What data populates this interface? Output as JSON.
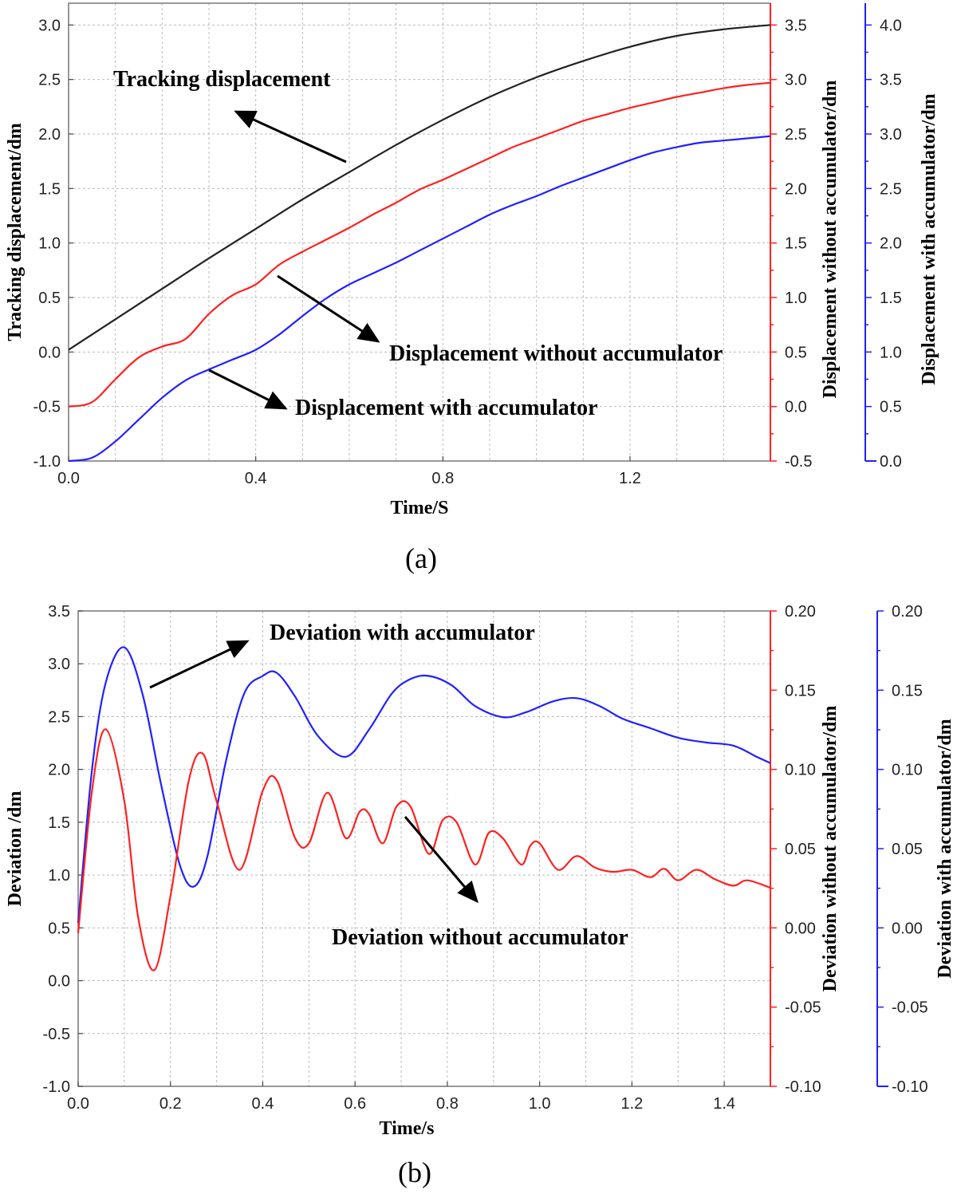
{
  "colors": {
    "black": "#222222",
    "red": "#ff2020",
    "blue": "#2020ff",
    "grid": "#bbbbbb",
    "frame": "#777777"
  },
  "chart_data": [
    {
      "type": "line",
      "panel_label": "(a)",
      "xlabel": "Time/S",
      "xlim": [
        0,
        1.5
      ],
      "xticks": [
        "0.0",
        "0.4",
        "0.8",
        "1.2"
      ],
      "grid": true,
      "axes": {
        "left": {
          "label": "Tracking displacement/dm",
          "ylim": [
            -1.0,
            3.2
          ],
          "ticks": [
            "-1.0",
            "-0.5",
            "0.0",
            "0.5",
            "1.0",
            "1.5",
            "2.0",
            "2.5",
            "3.0"
          ]
        },
        "right1": {
          "label": "Displacement without accumulator/dm",
          "ylim": [
            -0.5,
            3.7
          ],
          "ticks": [
            "-0.5",
            "0.0",
            "0.5",
            "1.0",
            "1.5",
            "2.0",
            "2.5",
            "3.0",
            "3.5"
          ]
        },
        "right2": {
          "label": "Displacement with accumulator/dm",
          "ylim": [
            0.0,
            4.2
          ],
          "ticks": [
            "0.0",
            "0.5",
            "1.0",
            "1.5",
            "2.0",
            "2.5",
            "3.0",
            "3.5",
            "4.0"
          ]
        }
      },
      "series": [
        {
          "name": "Tracking displacement",
          "axis": "left",
          "color": "black",
          "x": [
            0,
            0.1,
            0.2,
            0.3,
            0.4,
            0.5,
            0.6,
            0.7,
            0.8,
            0.9,
            1.0,
            1.1,
            1.2,
            1.3,
            1.4,
            1.5
          ],
          "y": [
            0.02,
            0.3,
            0.58,
            0.86,
            1.13,
            1.4,
            1.65,
            1.9,
            2.13,
            2.34,
            2.52,
            2.67,
            2.8,
            2.9,
            2.96,
            3.0
          ]
        },
        {
          "name": "Displacement without accumulator",
          "axis": "right1",
          "color": "red",
          "x": [
            0,
            0.05,
            0.1,
            0.15,
            0.2,
            0.25,
            0.3,
            0.35,
            0.4,
            0.45,
            0.5,
            0.55,
            0.6,
            0.65,
            0.7,
            0.75,
            0.8,
            0.85,
            0.9,
            0.95,
            1.0,
            1.05,
            1.1,
            1.15,
            1.2,
            1.25,
            1.3,
            1.35,
            1.4,
            1.45,
            1.5
          ],
          "y": [
            0.0,
            0.04,
            0.25,
            0.45,
            0.55,
            0.62,
            0.85,
            1.02,
            1.12,
            1.3,
            1.42,
            1.53,
            1.64,
            1.76,
            1.87,
            1.99,
            2.08,
            2.18,
            2.28,
            2.38,
            2.46,
            2.54,
            2.62,
            2.68,
            2.74,
            2.79,
            2.84,
            2.88,
            2.92,
            2.95,
            2.97
          ]
        },
        {
          "name": "Displacement with accumulator",
          "axis": "right2",
          "color": "blue",
          "x": [
            0,
            0.05,
            0.1,
            0.15,
            0.2,
            0.25,
            0.3,
            0.35,
            0.4,
            0.45,
            0.5,
            0.55,
            0.6,
            0.65,
            0.7,
            0.75,
            0.8,
            0.85,
            0.9,
            0.95,
            1.0,
            1.05,
            1.1,
            1.15,
            1.2,
            1.25,
            1.3,
            1.35,
            1.4,
            1.45,
            1.5
          ],
          "y": [
            0.0,
            0.03,
            0.18,
            0.38,
            0.58,
            0.74,
            0.84,
            0.93,
            1.02,
            1.16,
            1.33,
            1.49,
            1.62,
            1.72,
            1.82,
            1.93,
            2.04,
            2.15,
            2.26,
            2.35,
            2.43,
            2.52,
            2.6,
            2.68,
            2.76,
            2.83,
            2.88,
            2.92,
            2.94,
            2.96,
            2.98
          ]
        }
      ],
      "annotations": [
        "Tracking displacement",
        "Displacement without accumulator",
        "Displacement with accumulator"
      ]
    },
    {
      "type": "line",
      "panel_label": "(b)",
      "xlabel": "Time/s",
      "xlim": [
        0,
        1.5
      ],
      "xticks": [
        "0.0",
        "0.2",
        "0.4",
        "0.6",
        "0.8",
        "1.0",
        "1.2",
        "1.4"
      ],
      "grid": true,
      "axes": {
        "left": {
          "label": "Deviation /dm",
          "ylim": [
            -1.0,
            3.5
          ],
          "ticks": [
            "-1.0",
            "-0.5",
            "0.0",
            "0.5",
            "1.0",
            "1.5",
            "2.0",
            "2.5",
            "3.0",
            "3.5"
          ]
        },
        "right1": {
          "label": "Deviation  without accumulator/dm",
          "ylim": [
            -0.1,
            0.2
          ],
          "ticks": [
            "-0.10",
            "-0.05",
            "0.00",
            "0.05",
            "0.10",
            "0.15",
            "0.20"
          ]
        },
        "right2": {
          "label": "Deviation with accumulator/dm",
          "ylim": [
            -0.1,
            0.2
          ],
          "ticks": [
            "-0.10",
            "-0.05",
            "0.00",
            "0.05",
            "0.10",
            "0.15",
            "0.20"
          ]
        }
      },
      "series": [
        {
          "name": "Deviation with accumulator",
          "axis": "right2",
          "color": "blue",
          "x": [
            0,
            0.03,
            0.06,
            0.1,
            0.14,
            0.18,
            0.22,
            0.25,
            0.28,
            0.32,
            0.36,
            0.4,
            0.43,
            0.47,
            0.52,
            0.58,
            0.63,
            0.68,
            0.72,
            0.76,
            0.81,
            0.86,
            0.92,
            0.97,
            1.03,
            1.08,
            1.13,
            1.18,
            1.24,
            1.3,
            1.36,
            1.42,
            1.47,
            1.5
          ],
          "y": [
            0.003,
            0.1,
            0.155,
            0.177,
            0.147,
            0.09,
            0.04,
            0.026,
            0.045,
            0.105,
            0.148,
            0.159,
            0.161,
            0.146,
            0.121,
            0.108,
            0.125,
            0.148,
            0.157,
            0.159,
            0.153,
            0.14,
            0.133,
            0.136,
            0.143,
            0.145,
            0.14,
            0.132,
            0.126,
            0.12,
            0.117,
            0.115,
            0.108,
            0.104
          ]
        },
        {
          "name": "Deviation without accumulator",
          "axis": "left",
          "color": "red",
          "x": [
            0,
            0.03,
            0.06,
            0.1,
            0.13,
            0.165,
            0.2,
            0.24,
            0.27,
            0.3,
            0.35,
            0.4,
            0.43,
            0.47,
            0.5,
            0.54,
            0.58,
            0.61,
            0.63,
            0.66,
            0.69,
            0.72,
            0.76,
            0.79,
            0.82,
            0.86,
            0.89,
            0.92,
            0.96,
            0.98,
            1.0,
            1.04,
            1.08,
            1.12,
            1.16,
            1.2,
            1.24,
            1.27,
            1.3,
            1.34,
            1.38,
            1.42,
            1.45,
            1.5
          ],
          "y": [
            0.45,
            1.8,
            2.38,
            1.7,
            0.6,
            0.1,
            0.8,
            1.9,
            2.15,
            1.7,
            1.05,
            1.8,
            1.9,
            1.35,
            1.3,
            1.78,
            1.35,
            1.6,
            1.58,
            1.3,
            1.65,
            1.65,
            1.2,
            1.52,
            1.5,
            1.1,
            1.4,
            1.35,
            1.1,
            1.28,
            1.3,
            1.05,
            1.18,
            1.07,
            1.03,
            1.05,
            0.98,
            1.06,
            0.95,
            1.05,
            0.96,
            0.9,
            0.95,
            0.88
          ]
        }
      ],
      "annotations": [
        "Deviation with accumulator",
        "Deviation without accumulator"
      ]
    }
  ]
}
